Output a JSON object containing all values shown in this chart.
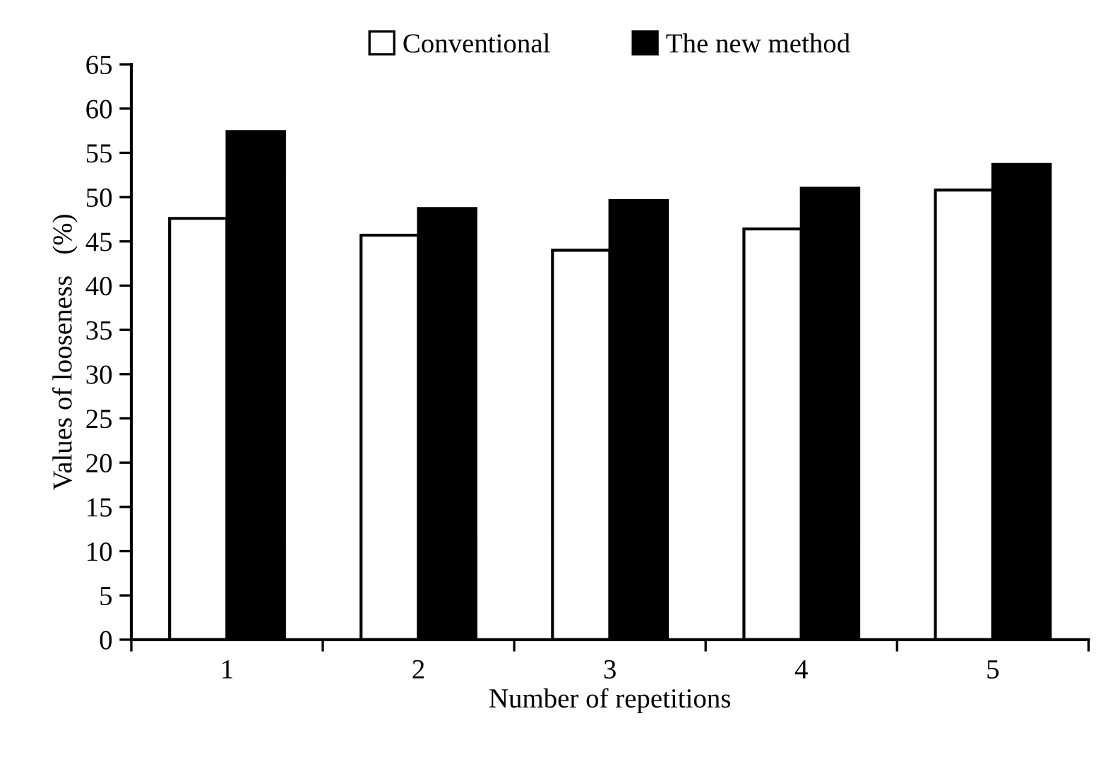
{
  "chart_data": {
    "type": "bar",
    "xlabel": "Number of repetitions",
    "ylabel": "Values of looseness   (%)",
    "categories": [
      "1",
      "2",
      "3",
      "4",
      "5"
    ],
    "series": [
      {
        "name": "Conventional",
        "color": "#ffffff",
        "values": [
          47.6,
          45.7,
          44.0,
          46.4,
          50.8
        ]
      },
      {
        "name": "The new method",
        "color": "#000000",
        "values": [
          57.4,
          48.7,
          49.6,
          51.0,
          53.7
        ]
      }
    ],
    "ylim": [
      0,
      65
    ],
    "yticks": [
      0,
      5,
      10,
      15,
      20,
      25,
      30,
      35,
      40,
      45,
      50,
      55,
      60,
      65
    ],
    "grid": false,
    "legend": "top"
  }
}
